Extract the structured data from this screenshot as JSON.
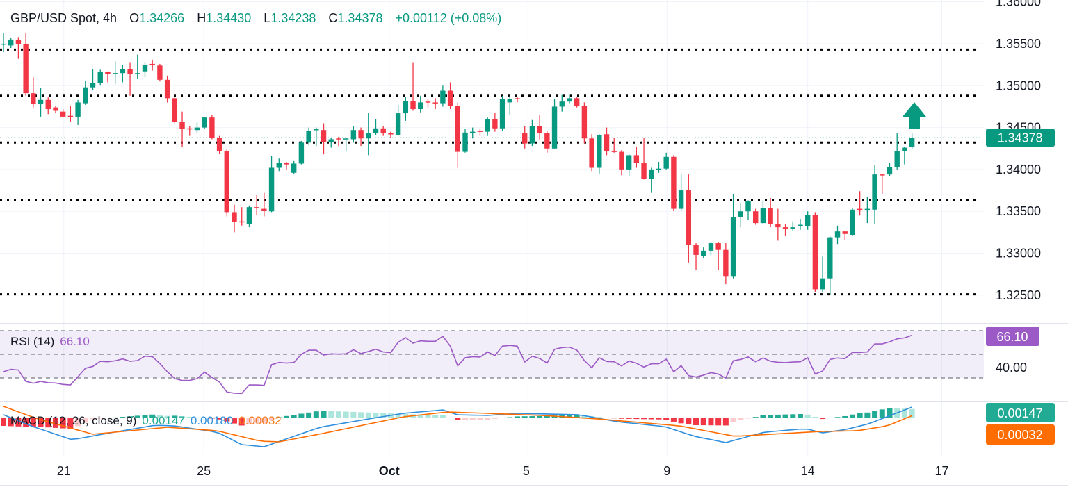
{
  "header": {
    "symbol": "GBP/USD Spot, 4h",
    "o_label": "O",
    "o": "1.34266",
    "h_label": "H",
    "h": "1.34430",
    "l_label": "L",
    "l": "1.34238",
    "c_label": "C",
    "c": "1.34378",
    "change": "+0.00112 (+0.08%)"
  },
  "price_axis": {
    "labels": [
      "1.36000",
      "1.35500",
      "1.35000",
      "1.34500",
      "1.34000",
      "1.33500",
      "1.33000",
      "1.32500"
    ],
    "current_price": "1.34378"
  },
  "time_axis": {
    "labels": [
      {
        "text": "21",
        "index": 8.1,
        "bold": false
      },
      {
        "text": "25",
        "index": 26.9,
        "bold": false
      },
      {
        "text": "Oct",
        "index": 51.8,
        "bold": true
      },
      {
        "text": "5",
        "index": 70.2,
        "bold": false
      },
      {
        "text": "9",
        "index": 89.1,
        "bold": false
      },
      {
        "text": "14",
        "index": 108.0,
        "bold": false
      },
      {
        "text": "17",
        "index": 126.0,
        "bold": false
      }
    ]
  },
  "rsi": {
    "title": "RSI (14)",
    "value": "66.10",
    "axis_label": "40.00"
  },
  "macd": {
    "title": "MACD (12, 26, close, 9)",
    "histogram": "0.00147",
    "macd": "0.00180",
    "signal": "0.00032"
  },
  "colors": {
    "up": "#089981",
    "down": "#f23645",
    "rsi": "#9c5ac6",
    "macd": "#2f8fdc",
    "signal": "#ff6d00",
    "hist_up_strong": "#22ab94",
    "hist_up_weak": "#ace5dc",
    "hist_down_strong": "#f23645",
    "hist_down_weak": "#fccbcd",
    "level": "#000000",
    "grid": "#f0f3fa"
  },
  "chart_data": {
    "type": "candlestick",
    "title": "GBP/USD Spot, 4h",
    "ylim": [
      1.32167,
      1.36022
    ],
    "support_resistance_levels": [
      1.3543,
      1.3488,
      1.3432,
      1.3363,
      1.3251
    ],
    "annotation": "up-arrow",
    "candles": [
      [
        1.3549,
        1.3563,
        1.354,
        1.355
      ],
      [
        1.3548,
        1.3557,
        1.3545,
        1.3555
      ],
      [
        1.3555,
        1.3558,
        1.3532,
        1.355
      ],
      [
        1.355,
        1.3563,
        1.3488,
        1.3491
      ],
      [
        1.3491,
        1.351,
        1.3474,
        1.3478
      ],
      [
        1.3478,
        1.3497,
        1.3463,
        1.3483
      ],
      [
        1.3483,
        1.3486,
        1.3466,
        1.3472
      ],
      [
        1.3474,
        1.3476,
        1.3467,
        1.347
      ],
      [
        1.3469,
        1.3472,
        1.3462,
        1.3463
      ],
      [
        1.3464,
        1.3476,
        1.3457,
        1.3463
      ],
      [
        1.3463,
        1.3483,
        1.3453,
        1.348
      ],
      [
        1.3479,
        1.3506,
        1.3477,
        1.3498
      ],
      [
        1.3498,
        1.352,
        1.3495,
        1.3503
      ],
      [
        1.3503,
        1.3519,
        1.35,
        1.3516
      ],
      [
        1.3516,
        1.3517,
        1.3504,
        1.3514
      ],
      [
        1.3514,
        1.3529,
        1.3502,
        1.3515
      ],
      [
        1.3515,
        1.3525,
        1.3504,
        1.352
      ],
      [
        1.352,
        1.3528,
        1.3488,
        1.3514
      ],
      [
        1.3514,
        1.3537,
        1.3508,
        1.3515
      ],
      [
        1.3517,
        1.3528,
        1.351,
        1.3525
      ],
      [
        1.3526,
        1.3531,
        1.3518,
        1.3525
      ],
      [
        1.3524,
        1.3526,
        1.3505,
        1.3507
      ],
      [
        1.3507,
        1.3512,
        1.348,
        1.3485
      ],
      [
        1.3485,
        1.3487,
        1.3455,
        1.3457
      ],
      [
        1.3457,
        1.3469,
        1.3427,
        1.3448
      ],
      [
        1.3449,
        1.3452,
        1.344,
        1.3448
      ],
      [
        1.3447,
        1.3456,
        1.3443,
        1.345
      ],
      [
        1.345,
        1.3463,
        1.3448,
        1.3462
      ],
      [
        1.3462,
        1.3465,
        1.3436,
        1.3438
      ],
      [
        1.3438,
        1.344,
        1.3419,
        1.3422
      ],
      [
        1.3422,
        1.3424,
        1.3344,
        1.3349
      ],
      [
        1.3349,
        1.3358,
        1.3325,
        1.3337
      ],
      [
        1.3338,
        1.3355,
        1.3333,
        1.3337
      ],
      [
        1.3335,
        1.3357,
        1.3331,
        1.3355
      ],
      [
        1.3355,
        1.337,
        1.3346,
        1.3354
      ],
      [
        1.3353,
        1.3372,
        1.3344,
        1.3351
      ],
      [
        1.335,
        1.3416,
        1.3349,
        1.3402
      ],
      [
        1.3402,
        1.3413,
        1.3398,
        1.3408
      ],
      [
        1.3408,
        1.3409,
        1.34,
        1.3406
      ],
      [
        1.3396,
        1.341,
        1.3395,
        1.3407
      ],
      [
        1.3407,
        1.3434,
        1.3406,
        1.3432
      ],
      [
        1.3432,
        1.345,
        1.343,
        1.3446
      ],
      [
        1.3447,
        1.345,
        1.3428,
        1.3448
      ],
      [
        1.3447,
        1.3455,
        1.3418,
        1.3433
      ],
      [
        1.3433,
        1.3438,
        1.3426,
        1.3436
      ],
      [
        1.3437,
        1.3439,
        1.3428,
        1.3436
      ],
      [
        1.3436,
        1.3438,
        1.3422,
        1.3437
      ],
      [
        1.3436,
        1.3452,
        1.3432,
        1.3447
      ],
      [
        1.3447,
        1.345,
        1.3428,
        1.3437
      ],
      [
        1.3437,
        1.3467,
        1.3417,
        1.3443
      ],
      [
        1.3443,
        1.346,
        1.3441,
        1.3449
      ],
      [
        1.3449,
        1.3452,
        1.344,
        1.3443
      ],
      [
        1.3443,
        1.3445,
        1.3438,
        1.3442
      ],
      [
        1.3441,
        1.3477,
        1.344,
        1.3467
      ],
      [
        1.3467,
        1.3487,
        1.3458,
        1.3482
      ],
      [
        1.3482,
        1.3528,
        1.347,
        1.3472
      ],
      [
        1.3472,
        1.3488,
        1.3468,
        1.348
      ],
      [
        1.3481,
        1.3484,
        1.3474,
        1.348
      ],
      [
        1.348,
        1.3485,
        1.3472,
        1.3479
      ],
      [
        1.3479,
        1.35,
        1.3475,
        1.3494
      ],
      [
        1.3494,
        1.3504,
        1.3472,
        1.3476
      ],
      [
        1.3476,
        1.348,
        1.3402,
        1.3421
      ],
      [
        1.3421,
        1.3448,
        1.342,
        1.3444
      ],
      [
        1.3444,
        1.345,
        1.3437,
        1.3445
      ],
      [
        1.3446,
        1.3448,
        1.344,
        1.3445
      ],
      [
        1.3445,
        1.3462,
        1.344,
        1.346
      ],
      [
        1.346,
        1.3468,
        1.3445,
        1.3449
      ],
      [
        1.3449,
        1.3488,
        1.3446,
        1.3484
      ],
      [
        1.348,
        1.3488,
        1.3465,
        1.3484
      ],
      [
        1.3485,
        1.3487,
        1.348,
        1.3484
      ],
      [
        1.3443,
        1.3452,
        1.3425,
        1.3431
      ],
      [
        1.3431,
        1.3459,
        1.3428,
        1.3452
      ],
      [
        1.3452,
        1.3465,
        1.3436,
        1.3443
      ],
      [
        1.3443,
        1.3446,
        1.342,
        1.3425
      ],
      [
        1.3425,
        1.3484,
        1.3424,
        1.3475
      ],
      [
        1.3475,
        1.3489,
        1.3469,
        1.3481
      ],
      [
        1.3481,
        1.3489,
        1.3479,
        1.3485
      ],
      [
        1.3485,
        1.3486,
        1.3474,
        1.3476
      ],
      [
        1.3476,
        1.348,
        1.3431,
        1.3437
      ],
      [
        1.3437,
        1.3442,
        1.3398,
        1.3402
      ],
      [
        1.3402,
        1.3442,
        1.3395,
        1.3441
      ],
      [
        1.3442,
        1.345,
        1.3417,
        1.3422
      ],
      [
        1.3422,
        1.3438,
        1.342,
        1.3421
      ],
      [
        1.3421,
        1.3423,
        1.3393,
        1.34
      ],
      [
        1.34,
        1.3418,
        1.3392,
        1.3417
      ],
      [
        1.3417,
        1.3427,
        1.3402,
        1.3408
      ],
      [
        1.3408,
        1.3438,
        1.3388,
        1.3389
      ],
      [
        1.3389,
        1.3402,
        1.3372,
        1.34
      ],
      [
        1.34,
        1.3409,
        1.3396,
        1.3401
      ],
      [
        1.3401,
        1.342,
        1.34,
        1.3415
      ],
      [
        1.3415,
        1.3417,
        1.3351,
        1.3353
      ],
      [
        1.3353,
        1.3394,
        1.335,
        1.3375
      ],
      [
        1.3375,
        1.3394,
        1.3289,
        1.331
      ],
      [
        1.331,
        1.3312,
        1.328,
        1.3298
      ],
      [
        1.3297,
        1.3307,
        1.3294,
        1.3303
      ],
      [
        1.3303,
        1.3313,
        1.3298,
        1.3312
      ],
      [
        1.3312,
        1.3313,
        1.328,
        1.3304
      ],
      [
        1.3304,
        1.3312,
        1.3263,
        1.3272
      ],
      [
        1.3272,
        1.3371,
        1.327,
        1.3343
      ],
      [
        1.3343,
        1.336,
        1.3331,
        1.335
      ],
      [
        1.335,
        1.3363,
        1.334,
        1.3362
      ],
      [
        1.335,
        1.3353,
        1.3334,
        1.3336
      ],
      [
        1.3336,
        1.3363,
        1.3335,
        1.3354
      ],
      [
        1.3354,
        1.3366,
        1.3331,
        1.3335
      ],
      [
        1.3335,
        1.3353,
        1.3315,
        1.3331
      ],
      [
        1.3331,
        1.3335,
        1.3321,
        1.3329
      ],
      [
        1.3329,
        1.3338,
        1.3327,
        1.3331
      ],
      [
        1.3332,
        1.3341,
        1.3328,
        1.3334
      ],
      [
        1.3332,
        1.335,
        1.3328,
        1.3346
      ],
      [
        1.3346,
        1.3349,
        1.3254,
        1.3257
      ],
      [
        1.3257,
        1.3296,
        1.3254,
        1.327
      ],
      [
        1.327,
        1.332,
        1.325,
        1.3319
      ],
      [
        1.3319,
        1.3333,
        1.3311,
        1.3326
      ],
      [
        1.3326,
        1.3327,
        1.3316,
        1.3323
      ],
      [
        1.3322,
        1.3354,
        1.3321,
        1.3352
      ],
      [
        1.3353,
        1.3374,
        1.3345,
        1.3352
      ],
      [
        1.3352,
        1.3367,
        1.3336,
        1.3353
      ],
      [
        1.3352,
        1.3405,
        1.3335,
        1.3394
      ],
      [
        1.3394,
        1.3395,
        1.3371,
        1.3393
      ],
      [
        1.3394,
        1.3408,
        1.3392,
        1.3403
      ],
      [
        1.3403,
        1.3443,
        1.34,
        1.3422
      ],
      [
        1.3422,
        1.3427,
        1.3406,
        1.3426
      ],
      [
        1.34266,
        1.3443,
        1.34238,
        1.34378
      ]
    ],
    "rsi_bands": [
      70,
      50,
      30
    ],
    "rsi_values": [
      35.3,
      37.3,
      36.7,
      27.1,
      25.5,
      27.1,
      25.9,
      25.7,
      24.5,
      24.1,
      31.0,
      38.2,
      39.8,
      44.1,
      43.7,
      44.5,
      46.1,
      44.1,
      44.7,
      48.4,
      48.0,
      42.2,
      35.3,
      29.4,
      27.9,
      27.9,
      29.4,
      34.9,
      30.4,
      26.5,
      18.1,
      17.1,
      16.9,
      24.1,
      24.1,
      23.7,
      41.2,
      43.1,
      42.6,
      43.1,
      50.0,
      53.5,
      53.5,
      49.4,
      50.4,
      50.2,
      50.4,
      53.9,
      50.6,
      52.4,
      54.3,
      52.0,
      51.4,
      60.2,
      64.1,
      59.4,
      61.4,
      61.0,
      61.0,
      65.3,
      56.9,
      40.2,
      47.1,
      48.0,
      47.7,
      52.0,
      49.0,
      56.9,
      57.5,
      56.9,
      43.5,
      48.4,
      46.5,
      42.6,
      54.3,
      55.7,
      56.1,
      53.5,
      44.7,
      38.6,
      47.1,
      43.9,
      43.7,
      40.2,
      44.3,
      42.4,
      39.2,
      42.0,
      42.0,
      45.9,
      35.3,
      40.4,
      32.0,
      30.8,
      32.4,
      34.5,
      33.3,
      29.8,
      44.5,
      45.7,
      47.7,
      43.7,
      46.9,
      44.1,
      43.3,
      43.0,
      43.5,
      43.7,
      47.1,
      33.3,
      35.9,
      45.7,
      46.9,
      46.3,
      51.6,
      51.6,
      52.0,
      58.8,
      58.8,
      60.6,
      63.1,
      63.9,
      66.1
    ],
    "macd_line": [
      [
        0,
        0.00048
      ],
      [
        3.7,
        -0.00144
      ],
      [
        9.2,
        -0.00384
      ],
      [
        13.3,
        -0.00288
      ],
      [
        20.4,
        -0.00132
      ],
      [
        22.9,
        -0.00144
      ],
      [
        28.7,
        -0.00252
      ],
      [
        32,
        -0.00468
      ],
      [
        35,
        -0.00504
      ],
      [
        39,
        -0.00324
      ],
      [
        42.5,
        -0.00168
      ],
      [
        49.6,
        -0.00012
      ],
      [
        53.7,
        0.00072
      ],
      [
        59.1,
        0.00132
      ],
      [
        60.8,
        0.00048
      ],
      [
        65,
        0.00036
      ],
      [
        69,
        0.00072
      ],
      [
        77.3,
        0.00048
      ],
      [
        82.4,
        -0.00072
      ],
      [
        88.8,
        -0.00156
      ],
      [
        92.8,
        -0.00324
      ],
      [
        97,
        -0.00432
      ],
      [
        102.2,
        -0.00252
      ],
      [
        107.7,
        -0.00192
      ],
      [
        110,
        -0.00264
      ],
      [
        113.2,
        -0.00204
      ],
      [
        116.2,
        -0.00108
      ],
      [
        122,
        0.0018
      ]
    ],
    "signal_line": [
      [
        0,
        0.00192
      ],
      [
        4.6,
        -0.00024
      ],
      [
        12,
        -0.00288
      ],
      [
        22,
        -0.00168
      ],
      [
        28.7,
        -0.00228
      ],
      [
        34.5,
        -0.00408
      ],
      [
        37,
        -0.0042
      ],
      [
        43.3,
        -0.00264
      ],
      [
        53.7,
        0.00012
      ],
      [
        59.6,
        0.00096
      ],
      [
        65,
        0.00072
      ],
      [
        72.4,
        0.00036
      ],
      [
        79.8,
        -0.00024
      ],
      [
        90.8,
        -0.00144
      ],
      [
        98.2,
        -0.00324
      ],
      [
        109.7,
        -0.0024
      ],
      [
        114.7,
        -0.00228
      ],
      [
        118.7,
        -0.00144
      ],
      [
        122,
        0.00032
      ]
    ]
  }
}
